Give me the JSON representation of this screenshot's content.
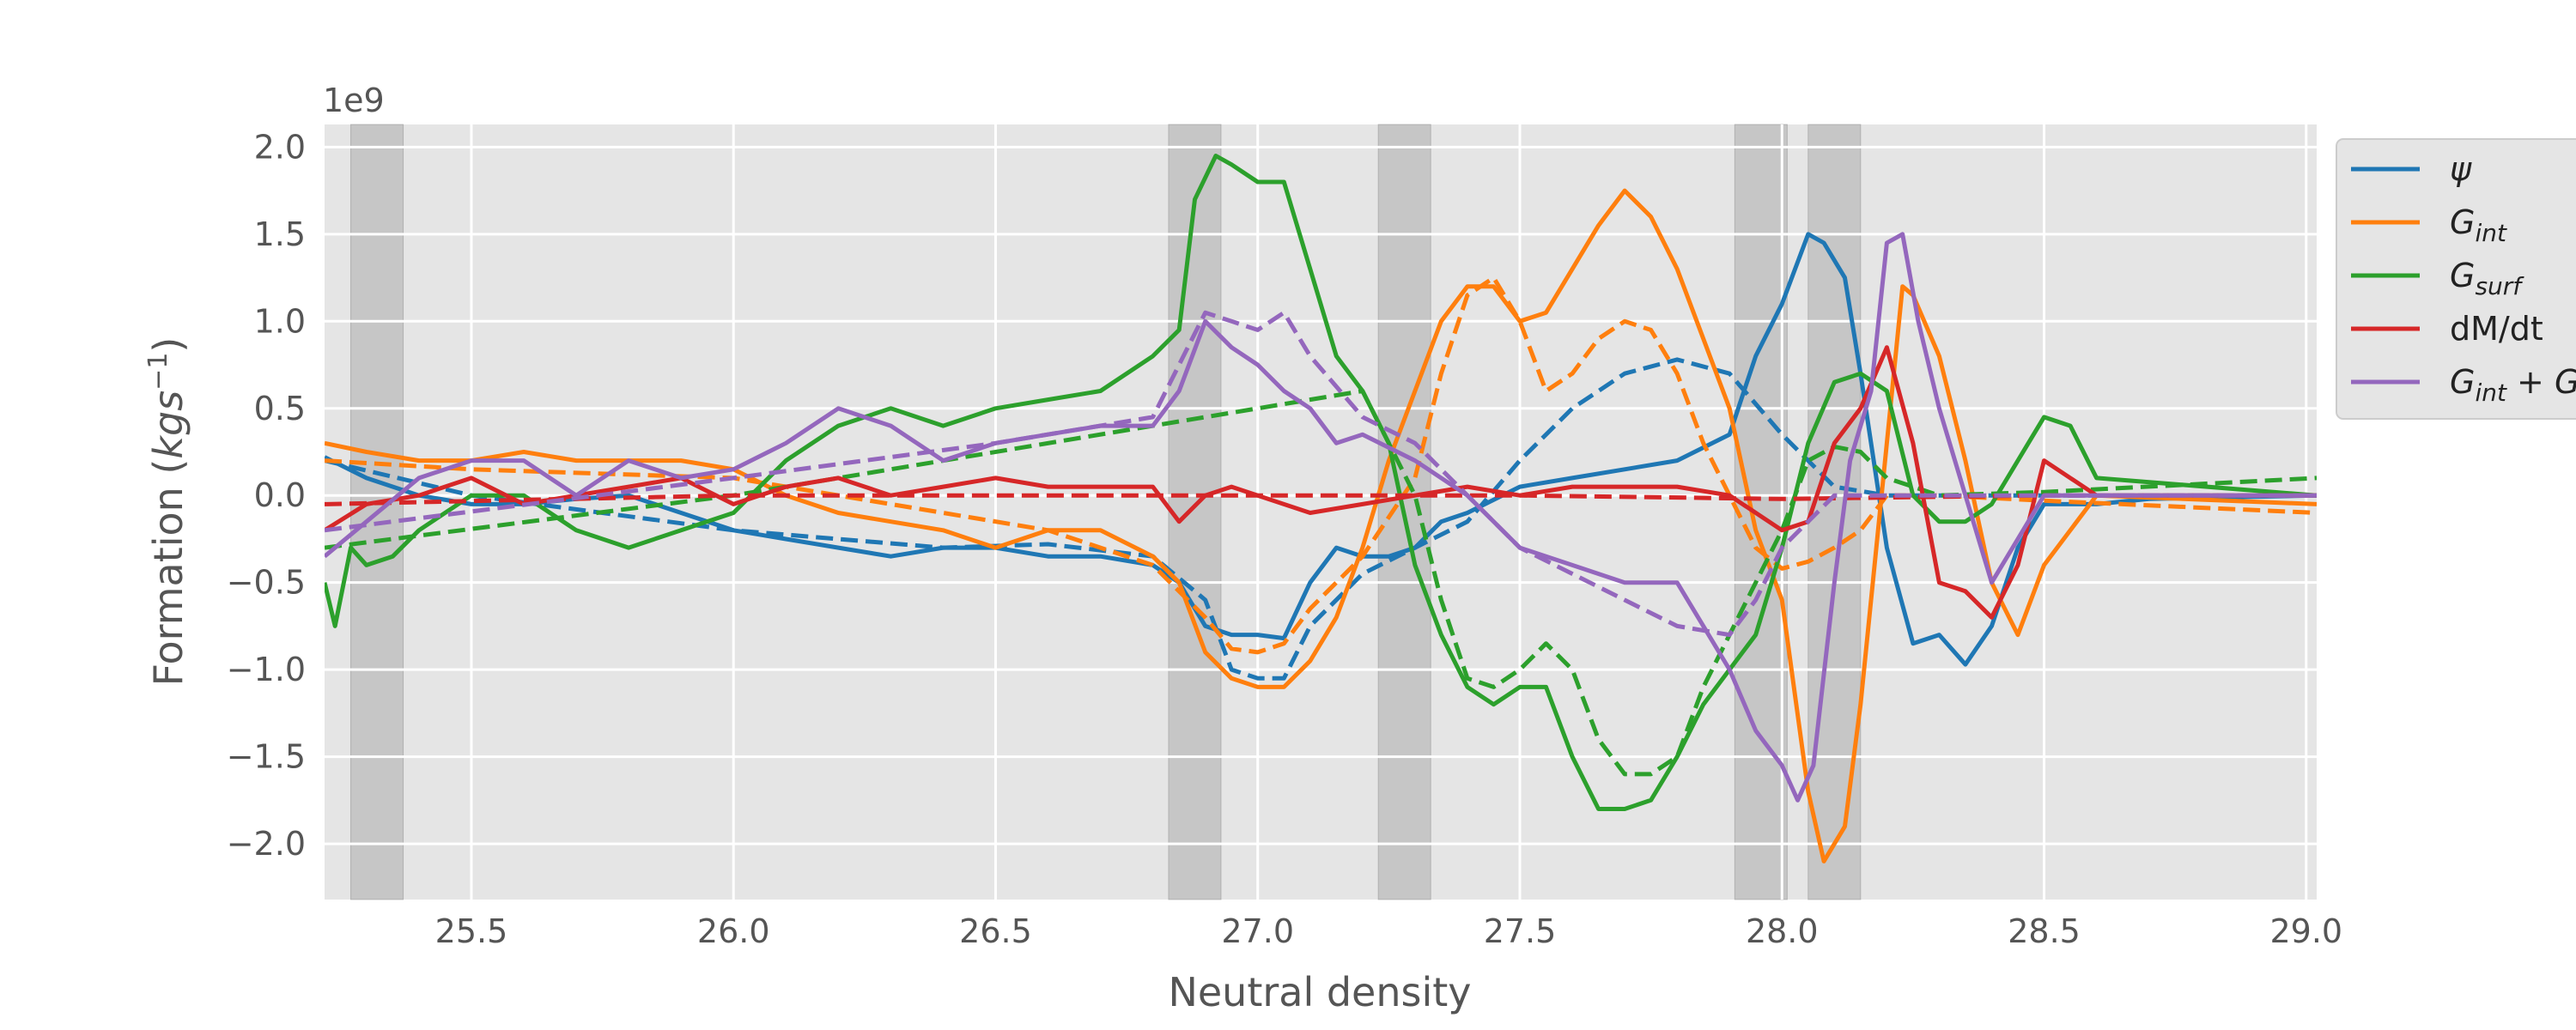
{
  "chart_data": {
    "type": "line",
    "xlabel": "Neutral density",
    "ylabel": "Formation (kgs⁻¹)",
    "ylabel_parts": {
      "pre": "Formation (",
      "unit": "kgs",
      "exp": "−1",
      "post": ")"
    },
    "offset_text": "1e9",
    "xlim": [
      25.22,
      29.02
    ],
    "ylim": [
      -2.32,
      2.13
    ],
    "xticks": [
      25.5,
      26.0,
      26.5,
      27.0,
      27.5,
      28.0,
      28.5,
      29.0
    ],
    "xtick_labels": [
      "25.5",
      "26.0",
      "26.5",
      "27.0",
      "27.5",
      "28.0",
      "28.5",
      "29.0"
    ],
    "yticks": [
      -2.0,
      -1.5,
      -1.0,
      -0.5,
      0.0,
      0.5,
      1.0,
      1.5,
      2.0
    ],
    "ytick_labels": [
      "−2.0",
      "−1.5",
      "−1.0",
      "−0.5",
      "0.0",
      "0.5",
      "1.0",
      "1.5",
      "2.0"
    ],
    "grid": true,
    "legend_position": "right, partially clipped",
    "shaded_bands": [
      [
        25.27,
        25.37
      ],
      [
        26.83,
        26.93
      ],
      [
        27.23,
        27.33
      ],
      [
        27.91,
        28.01
      ],
      [
        28.05,
        28.15
      ]
    ],
    "series": [
      {
        "name": "ψ",
        "legend": {
          "base": "ψ",
          "sub": ""
        },
        "color": "#1f77b4",
        "style": "solid",
        "x": [
          25.22,
          25.3,
          25.4,
          25.5,
          25.6,
          25.7,
          25.8,
          25.9,
          26.0,
          26.1,
          26.2,
          26.3,
          26.4,
          26.5,
          26.6,
          26.7,
          26.8,
          26.85,
          26.9,
          26.95,
          27.0,
          27.05,
          27.1,
          27.15,
          27.2,
          27.25,
          27.3,
          27.35,
          27.4,
          27.5,
          27.6,
          27.7,
          27.8,
          27.9,
          27.95,
          28.0,
          28.05,
          28.08,
          28.12,
          28.15,
          28.2,
          28.25,
          28.3,
          28.35,
          28.4,
          28.45,
          28.5,
          28.6,
          28.7,
          29.02
        ],
        "y": [
          0.22,
          0.1,
          0.0,
          -0.05,
          -0.05,
          -0.02,
          0.0,
          -0.1,
          -0.2,
          -0.25,
          -0.3,
          -0.35,
          -0.3,
          -0.3,
          -0.35,
          -0.35,
          -0.4,
          -0.5,
          -0.75,
          -0.8,
          -0.8,
          -0.82,
          -0.5,
          -0.3,
          -0.35,
          -0.35,
          -0.3,
          -0.15,
          -0.1,
          0.05,
          0.1,
          0.15,
          0.2,
          0.35,
          0.8,
          1.1,
          1.5,
          1.45,
          1.25,
          0.7,
          -0.3,
          -0.85,
          -0.8,
          -0.97,
          -0.75,
          -0.3,
          -0.05,
          -0.05,
          -0.02,
          0.0
        ]
      },
      {
        "name": "ψ (dashed)",
        "legend": null,
        "color": "#1f77b4",
        "style": "dashed",
        "x": [
          25.22,
          25.5,
          26.0,
          26.2,
          26.4,
          26.6,
          26.8,
          26.9,
          26.95,
          27.0,
          27.05,
          27.1,
          27.2,
          27.3,
          27.4,
          27.5,
          27.6,
          27.7,
          27.8,
          27.9,
          28.0,
          28.1,
          28.2,
          28.5,
          29.02
        ],
        "y": [
          0.2,
          0.0,
          -0.2,
          -0.25,
          -0.3,
          -0.28,
          -0.35,
          -0.6,
          -1.0,
          -1.05,
          -1.05,
          -0.75,
          -0.45,
          -0.3,
          -0.15,
          0.2,
          0.5,
          0.7,
          0.78,
          0.7,
          0.35,
          0.05,
          0.0,
          0.0,
          0.0
        ]
      },
      {
        "name": "G_int",
        "legend": {
          "base": "G",
          "sub": "int"
        },
        "color": "#ff7f0e",
        "style": "solid",
        "x": [
          25.22,
          25.3,
          25.4,
          25.5,
          25.6,
          25.7,
          25.8,
          25.9,
          26.0,
          26.1,
          26.2,
          26.3,
          26.4,
          26.5,
          26.6,
          26.7,
          26.8,
          26.85,
          26.9,
          26.95,
          27.0,
          27.05,
          27.1,
          27.15,
          27.2,
          27.25,
          27.3,
          27.35,
          27.4,
          27.45,
          27.5,
          27.55,
          27.6,
          27.65,
          27.7,
          27.75,
          27.8,
          27.85,
          27.9,
          27.95,
          28.0,
          28.05,
          28.08,
          28.12,
          28.15,
          28.2,
          28.23,
          28.25,
          28.3,
          28.35,
          28.4,
          28.45,
          28.5,
          28.6,
          29.02
        ],
        "y": [
          0.3,
          0.25,
          0.2,
          0.2,
          0.25,
          0.2,
          0.2,
          0.2,
          0.15,
          0.0,
          -0.1,
          -0.15,
          -0.2,
          -0.3,
          -0.2,
          -0.2,
          -0.35,
          -0.5,
          -0.9,
          -1.05,
          -1.1,
          -1.1,
          -0.95,
          -0.7,
          -0.3,
          0.2,
          0.6,
          1.0,
          1.2,
          1.2,
          1.0,
          1.05,
          1.3,
          1.55,
          1.75,
          1.6,
          1.3,
          0.9,
          0.5,
          -0.2,
          -0.6,
          -1.7,
          -2.1,
          -1.9,
          -1.2,
          0.3,
          1.2,
          1.15,
          0.8,
          0.2,
          -0.5,
          -0.8,
          -0.4,
          0.0,
          -0.05
        ]
      },
      {
        "name": "G_int (dashed)",
        "legend": null,
        "color": "#ff7f0e",
        "style": "dashed",
        "x": [
          25.22,
          25.5,
          26.0,
          26.2,
          26.4,
          26.6,
          26.8,
          26.9,
          26.95,
          27.0,
          27.05,
          27.1,
          27.2,
          27.3,
          27.35,
          27.4,
          27.45,
          27.5,
          27.55,
          27.6,
          27.65,
          27.7,
          27.75,
          27.8,
          27.85,
          27.9,
          27.95,
          28.0,
          28.05,
          28.1,
          28.15,
          28.2,
          28.3,
          28.5,
          29.02
        ],
        "y": [
          0.2,
          0.15,
          0.1,
          0.0,
          -0.1,
          -0.2,
          -0.4,
          -0.7,
          -0.88,
          -0.9,
          -0.85,
          -0.65,
          -0.35,
          0.1,
          0.7,
          1.15,
          1.25,
          1.0,
          0.6,
          0.7,
          0.9,
          1.0,
          0.95,
          0.7,
          0.3,
          0.0,
          -0.3,
          -0.42,
          -0.38,
          -0.3,
          -0.2,
          0.0,
          0.0,
          -0.03,
          -0.1
        ]
      },
      {
        "name": "G_surf",
        "legend": {
          "base": "G",
          "sub": "surf"
        },
        "color": "#2ca02c",
        "style": "solid",
        "x": [
          25.22,
          25.24,
          25.27,
          25.3,
          25.35,
          25.4,
          25.5,
          25.6,
          25.7,
          25.8,
          25.9,
          26.0,
          26.1,
          26.2,
          26.3,
          26.4,
          26.5,
          26.6,
          26.7,
          26.8,
          26.85,
          26.88,
          26.92,
          26.95,
          27.0,
          27.05,
          27.1,
          27.15,
          27.2,
          27.25,
          27.3,
          27.35,
          27.4,
          27.45,
          27.5,
          27.55,
          27.6,
          27.65,
          27.7,
          27.75,
          27.8,
          27.85,
          27.9,
          27.95,
          28.0,
          28.05,
          28.1,
          28.15,
          28.2,
          28.25,
          28.3,
          28.35,
          28.4,
          28.45,
          28.5,
          28.55,
          28.6,
          29.02
        ],
        "y": [
          -0.5,
          -0.75,
          -0.3,
          -0.4,
          -0.35,
          -0.2,
          0.0,
          0.0,
          -0.2,
          -0.3,
          -0.2,
          -0.1,
          0.2,
          0.4,
          0.5,
          0.4,
          0.5,
          0.55,
          0.6,
          0.8,
          0.95,
          1.7,
          1.95,
          1.9,
          1.8,
          1.8,
          1.3,
          0.8,
          0.6,
          0.3,
          -0.4,
          -0.8,
          -1.1,
          -1.2,
          -1.1,
          -1.1,
          -1.5,
          -1.8,
          -1.8,
          -1.75,
          -1.5,
          -1.2,
          -1.0,
          -0.8,
          -0.3,
          0.3,
          0.65,
          0.7,
          0.6,
          0.0,
          -0.15,
          -0.15,
          -0.05,
          0.2,
          0.45,
          0.4,
          0.1,
          0.0
        ]
      },
      {
        "name": "G_surf (dashed)",
        "legend": null,
        "color": "#2ca02c",
        "style": "dashed",
        "x": [
          25.22,
          26.0,
          27.2,
          27.3,
          27.35,
          27.4,
          27.45,
          27.5,
          27.55,
          27.6,
          27.65,
          27.7,
          27.75,
          27.8,
          27.85,
          27.9,
          27.95,
          28.0,
          28.05,
          28.1,
          28.15,
          28.2,
          28.3,
          28.5,
          29.02
        ],
        "y": [
          -0.3,
          0.0,
          0.6,
          0.0,
          -0.6,
          -1.05,
          -1.1,
          -1.0,
          -0.85,
          -1.0,
          -1.4,
          -1.6,
          -1.6,
          -1.5,
          -1.1,
          -0.8,
          -0.5,
          -0.2,
          0.2,
          0.28,
          0.25,
          0.1,
          0.0,
          0.02,
          0.1
        ]
      },
      {
        "name": "dM/dt",
        "legend": {
          "base": "dM/dt",
          "sub": ""
        },
        "color": "#d62728",
        "style": "solid",
        "x": [
          25.22,
          25.3,
          25.4,
          25.5,
          25.6,
          25.7,
          25.8,
          25.9,
          26.0,
          26.1,
          26.2,
          26.3,
          26.4,
          26.5,
          26.6,
          26.7,
          26.8,
          26.85,
          26.9,
          26.95,
          27.0,
          27.1,
          27.2,
          27.3,
          27.4,
          27.5,
          27.6,
          27.7,
          27.8,
          27.9,
          28.0,
          28.05,
          28.1,
          28.15,
          28.2,
          28.25,
          28.3,
          28.35,
          28.4,
          28.45,
          28.5,
          28.55,
          28.6,
          28.7,
          29.02
        ],
        "y": [
          -0.2,
          -0.05,
          0.0,
          0.1,
          -0.05,
          0.0,
          0.05,
          0.1,
          -0.05,
          0.05,
          0.1,
          0.0,
          0.05,
          0.1,
          0.05,
          0.05,
          0.05,
          -0.15,
          0.0,
          0.05,
          0.0,
          -0.1,
          -0.05,
          0.0,
          0.05,
          0.0,
          0.05,
          0.05,
          0.05,
          0.0,
          -0.2,
          -0.15,
          0.3,
          0.5,
          0.85,
          0.3,
          -0.5,
          -0.55,
          -0.7,
          -0.4,
          0.2,
          0.1,
          0.0,
          0.0,
          0.0
        ]
      },
      {
        "name": "dM/dt (dashed)",
        "legend": null,
        "color": "#d62728",
        "style": "dashed",
        "x": [
          25.22,
          26.0,
          27.0,
          27.5,
          28.0,
          28.5,
          29.02
        ],
        "y": [
          -0.05,
          0.0,
          0.0,
          0.0,
          -0.02,
          0.0,
          0.0
        ]
      },
      {
        "name": "G_int + G_surf",
        "legend": {
          "base": "G",
          "sub": "int",
          "tail": " + G"
        },
        "color": "#9467bd",
        "style": "solid",
        "x": [
          25.22,
          25.3,
          25.4,
          25.5,
          25.6,
          25.7,
          25.8,
          25.9,
          26.0,
          26.1,
          26.2,
          26.3,
          26.4,
          26.5,
          26.6,
          26.7,
          26.8,
          26.85,
          26.9,
          26.95,
          27.0,
          27.05,
          27.1,
          27.15,
          27.2,
          27.3,
          27.4,
          27.5,
          27.6,
          27.7,
          27.8,
          27.9,
          27.95,
          28.0,
          28.03,
          28.06,
          28.1,
          28.13,
          28.17,
          28.2,
          28.23,
          28.26,
          28.3,
          28.35,
          28.4,
          28.5,
          29.02
        ],
        "y": [
          -0.35,
          -0.15,
          0.1,
          0.2,
          0.2,
          0.0,
          0.2,
          0.1,
          0.15,
          0.3,
          0.5,
          0.4,
          0.2,
          0.3,
          0.35,
          0.4,
          0.4,
          0.6,
          1.0,
          0.85,
          0.75,
          0.6,
          0.5,
          0.3,
          0.35,
          0.2,
          0.0,
          -0.3,
          -0.4,
          -0.5,
          -0.5,
          -1.0,
          -1.35,
          -1.55,
          -1.75,
          -1.55,
          -0.5,
          0.2,
          0.6,
          1.45,
          1.5,
          1.0,
          0.5,
          0.0,
          -0.5,
          0.0,
          0.0
        ]
      },
      {
        "name": "G_int + G_surf (dashed)",
        "legend": null,
        "color": "#9467bd",
        "style": "dashed",
        "x": [
          25.22,
          26.0,
          26.5,
          26.8,
          26.9,
          26.95,
          27.0,
          27.05,
          27.1,
          27.2,
          27.3,
          27.4,
          27.5,
          27.6,
          27.7,
          27.8,
          27.9,
          27.95,
          28.0,
          28.1,
          28.2,
          28.3,
          28.5,
          29.02
        ],
        "y": [
          -0.2,
          0.1,
          0.3,
          0.45,
          1.05,
          1.0,
          0.95,
          1.05,
          0.8,
          0.45,
          0.3,
          0.0,
          -0.3,
          -0.45,
          -0.6,
          -0.75,
          -0.8,
          -0.6,
          -0.3,
          0.0,
          0.0,
          0.0,
          0.0,
          0.0
        ]
      }
    ]
  }
}
